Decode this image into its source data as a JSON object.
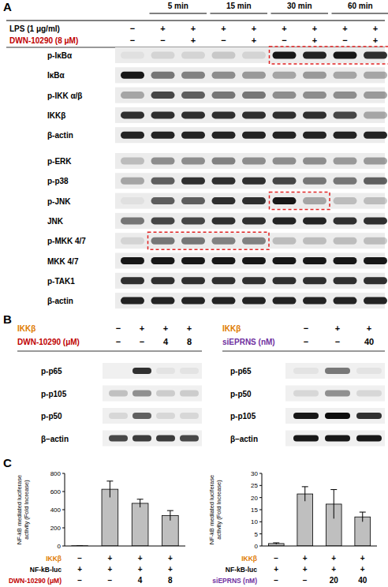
{
  "panels": {
    "A": {
      "label": "A",
      "time_labels": [
        {
          "text": "5 min",
          "lanes": [
            1,
            2
          ]
        },
        {
          "text": "15 min",
          "lanes": [
            3,
            4
          ]
        },
        {
          "text": "30 min",
          "lanes": [
            5,
            6
          ]
        },
        {
          "text": "60 min",
          "lanes": [
            7,
            8
          ]
        }
      ],
      "treatments": [
        {
          "label": "LPS (1 μg/ml)",
          "color": "#000000",
          "signs": [
            "−",
            "+",
            "+",
            "+",
            "+",
            "+",
            "+",
            "+",
            "+"
          ]
        },
        {
          "label": "DWN-10290 (8 μM)",
          "color": "#c00000",
          "signs": [
            "−",
            "−",
            "+",
            "−",
            "+",
            "−",
            "+",
            "−",
            "+"
          ]
        }
      ],
      "blot_groups": [
        [
          {
            "label": "p-IκBα",
            "bands": [
              0.05,
              0.1,
              0.1,
              0.15,
              0.1,
              0.9,
              0.85,
              0.9,
              0.8
            ]
          },
          {
            "label": "IκBα",
            "bands": [
              0.9,
              0.5,
              0.45,
              0.4,
              0.35,
              0.3,
              0.35,
              0.3,
              0.3
            ]
          },
          {
            "label": "p-IKK α/β",
            "bands": [
              0.3,
              0.7,
              0.6,
              0.5,
              0.5,
              0.4,
              0.4,
              0.4,
              0.35
            ]
          },
          {
            "label": "IKKβ",
            "bands": [
              0.8,
              0.8,
              0.8,
              0.8,
              0.8,
              0.8,
              0.8,
              0.7,
              0.3
            ]
          },
          {
            "label": "β-actin",
            "bands": [
              0.85,
              0.85,
              0.85,
              0.85,
              0.85,
              0.85,
              0.85,
              0.85,
              0.85
            ]
          }
        ],
        [
          {
            "label": "p-ERK",
            "bands": [
              0.2,
              0.4,
              0.4,
              0.45,
              0.4,
              0.4,
              0.4,
              0.35,
              0.35
            ]
          },
          {
            "label": "p-p38",
            "bands": [
              0.3,
              0.6,
              0.8,
              0.8,
              0.8,
              0.7,
              0.5,
              0.5,
              0.6
            ]
          },
          {
            "label": "p-JNK",
            "bands": [
              0.05,
              0.6,
              0.6,
              0.8,
              0.8,
              0.9,
              0.3,
              0.2,
              0.2
            ]
          },
          {
            "label": "JNK",
            "bands": [
              0.5,
              0.7,
              0.7,
              0.8,
              0.8,
              0.85,
              0.85,
              0.8,
              0.8
            ]
          },
          {
            "label": "p-MKK 4/7",
            "bands": [
              0.1,
              0.5,
              0.5,
              0.45,
              0.45,
              0.2,
              0.2,
              0.2,
              0.2
            ]
          },
          {
            "label": "MKK 4/7",
            "bands": [
              0.9,
              0.9,
              0.9,
              0.9,
              0.9,
              0.9,
              0.9,
              0.9,
              0.9
            ]
          },
          {
            "label": "p-TAK1",
            "bands": [
              0.8,
              0.8,
              0.8,
              0.8,
              0.8,
              0.8,
              0.8,
              0.8,
              0.8
            ]
          },
          {
            "label": "β-actin",
            "bands": [
              0.85,
              0.85,
              0.85,
              0.85,
              0.85,
              0.85,
              0.85,
              0.85,
              0.85
            ]
          }
        ]
      ],
      "highlights": [
        {
          "group": 0,
          "row": 0,
          "lanes": [
            5,
            8
          ]
        },
        {
          "group": 1,
          "row": 2,
          "lanes": [
            5,
            6
          ]
        },
        {
          "group": 1,
          "row": 4,
          "lanes": [
            1,
            4
          ]
        }
      ]
    },
    "B": {
      "label": "B",
      "blots": [
        {
          "treatments": [
            {
              "label": "IKKβ",
              "color": "#e07b00",
              "signs": [
                "−",
                "+",
                "+",
                "+"
              ]
            },
            {
              "label": "DWN-10290 (μM)",
              "color": "#c00000",
              "signs": [
                "−",
                "−",
                "4",
                "8"
              ]
            }
          ],
          "rows": [
            {
              "label": "p-p65",
              "bands": [
                0,
                0.8,
                0.05,
                0.05
              ]
            },
            {
              "label": "p-p105",
              "bands": [
                0.2,
                0.4,
                0.15,
                0.15
              ]
            },
            {
              "label": "p-p50",
              "bands": [
                0.1,
                0.6,
                0.1,
                0.1
              ]
            },
            {
              "label": "β–actin",
              "bands": [
                0.7,
                0.75,
                0.75,
                0.7
              ]
            }
          ]
        },
        {
          "treatments": [
            {
              "label": "IKKβ",
              "color": "#e07b00",
              "signs": [
                "−",
                "+",
                "+"
              ]
            },
            {
              "label": "siEPRNS (nM)",
              "color": "#7030a0",
              "signs": [
                "−",
                "−",
                "40"
              ]
            }
          ],
          "rows": [
            {
              "label": "p-p65",
              "bands": [
                0.05,
                0.5,
                0.05
              ]
            },
            {
              "label": "p-p50",
              "bands": [
                0.1,
                0.4,
                0.1
              ]
            },
            {
              "label": "p-p105",
              "bands": [
                0.9,
                0.95,
                0.8
              ]
            },
            {
              "label": "β–actin",
              "bands": [
                0.9,
                0.9,
                0.9
              ]
            }
          ]
        }
      ]
    },
    "C": {
      "label": "C"
    }
  },
  "chart_data": [
    {
      "type": "bar",
      "categories": [
        null,
        null,
        null,
        null
      ],
      "values": [
        2,
        625,
        470,
        335
      ],
      "errors": [
        0,
        90,
        45,
        55
      ],
      "color": "#bfbfbf",
      "ylim": [
        0,
        800
      ],
      "yticks": [
        0,
        200,
        400,
        600,
        800
      ],
      "y_label": "NF-kB mediated luciferase activity (Fold Increase)",
      "conditions": [
        {
          "label": "IKKβ",
          "color": "#e07b00",
          "values": [
            "−",
            "+",
            "+",
            "+"
          ]
        },
        {
          "label": "NF-kB-luc",
          "color": "#000000",
          "values": [
            "+",
            "+",
            "+",
            "+"
          ]
        },
        {
          "label": "DWN-10290 (μM)",
          "color": "#c00000",
          "values": [
            "−",
            "−",
            "4",
            "8"
          ]
        }
      ]
    },
    {
      "type": "bar",
      "categories": [
        null,
        null,
        null,
        null
      ],
      "values": [
        1,
        21.5,
        17.3,
        12
      ],
      "errors": [
        0.3,
        3,
        6,
        2
      ],
      "color": "#bfbfbf",
      "ylim": [
        0,
        30
      ],
      "yticks": [
        0,
        5,
        10,
        15,
        20,
        25,
        30
      ],
      "y_label": "NF-kB mediated luciferase activity (Fold Increase)",
      "conditions": [
        {
          "label": "IKKβ",
          "color": "#e07b00",
          "values": [
            "−",
            "+",
            "+",
            "+"
          ]
        },
        {
          "label": "NF-kB-luc",
          "color": "#000000",
          "values": [
            "+",
            "+",
            "+",
            "+"
          ]
        },
        {
          "label": "siEPRNS (nM)",
          "color": "#7030a0",
          "values": [
            "−",
            "−",
            "20",
            "40"
          ]
        }
      ]
    }
  ]
}
